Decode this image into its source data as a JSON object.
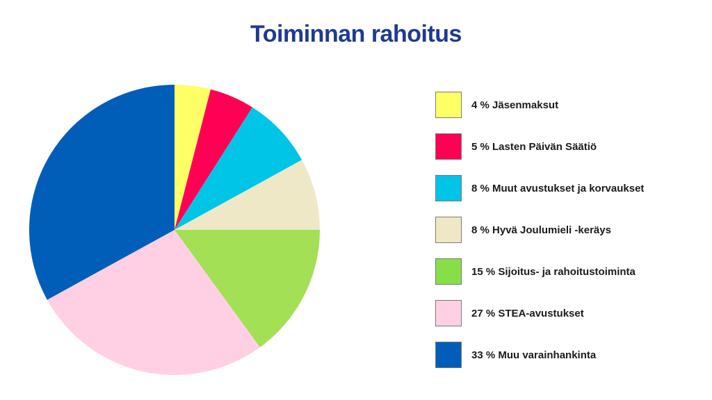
{
  "chart_data": {
    "type": "pie",
    "title": "Toiminnan rahoitus",
    "slices": [
      {
        "label": "4 % Jäsenmaksut",
        "value": 4,
        "color": "#ffff66"
      },
      {
        "label": "5 % Lasten Päivän Säätiö",
        "value": 5,
        "color": "#ff0055"
      },
      {
        "label": "8 % Muut avustukset ja korvaukset",
        "value": 8,
        "color": "#00c5e6"
      },
      {
        "label": "8 % Hyvä Joulumieli -keräys",
        "value": 8,
        "color": "#efe8c6"
      },
      {
        "label": "15 % Sijoitus- ja rahoitustoiminta",
        "value": 15,
        "color": "#a3e055"
      },
      {
        "label": "27 % STEA-avustukset",
        "value": 27,
        "color": "#ffd0e3"
      },
      {
        "label": "33 % Muu varainhankinta",
        "value": 33,
        "color": "#005eb8"
      }
    ],
    "legend_placement": "right",
    "legend_swatch_colors": [
      "#ffff66",
      "#ff0055",
      "#00c5e6",
      "#efe8c6",
      "#86df49",
      "#ffd0e3",
      "#005eb8"
    ]
  }
}
